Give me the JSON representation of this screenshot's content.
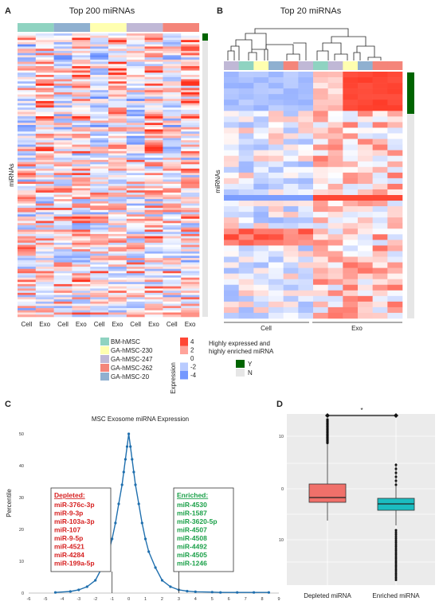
{
  "panel_a": {
    "letter": "A",
    "title": "Top 200 miRNAs",
    "ylabel": "miRNAs",
    "columns": [
      "Cell",
      "Exo",
      "Cell",
      "Exo",
      "Cell",
      "Exo",
      "Cell",
      "Exo",
      "Cell",
      "Exo"
    ],
    "group_colors": [
      "#8fd3c1",
      "#8fb0d0",
      "#ffffb0",
      "#c0b8d6",
      "#f4857a"
    ]
  },
  "panel_b": {
    "letter": "B",
    "title": "Top 20 miRNAs",
    "ylabel": "miRNAs",
    "xlabels": [
      "Cell",
      "Exo"
    ],
    "column_colors": [
      "#c0b8d6",
      "#8fd3c1",
      "#ffffb0",
      "#8fb0d0",
      "#f4857a",
      "#c0b8d6",
      "#8fd3c1",
      "#c0b8d6",
      "#ffffb0",
      "#8fb0d0",
      "#f4857a",
      "#f4857a"
    ]
  },
  "legend": {
    "groups": [
      {
        "label": "BM-hMSC",
        "color": "#8fd3c1"
      },
      {
        "label": "GA-hMSC-230",
        "color": "#ffffb0"
      },
      {
        "label": "GA-hMSC-247",
        "color": "#c0b8d6"
      },
      {
        "label": "GA-hMSC-262",
        "color": "#f4857a"
      },
      {
        "label": "GA-hMSC-20",
        "color": "#8fb0d0"
      }
    ],
    "expression_title": "Expression",
    "expression_ticks": [
      "4",
      "2",
      "0",
      "-2",
      "-4"
    ],
    "highlight_title_line1": "Highly expressed and",
    "highlight_title_line2": "highly enriched miRNA",
    "highlight_items": [
      {
        "label": "Y",
        "color": "#006400"
      },
      {
        "label": "N",
        "color": "#e6e6e6"
      }
    ]
  },
  "panel_c": {
    "letter": "C",
    "chart_data": {
      "type": "line",
      "title": "MSC Exosome miRNA Expression",
      "xlabel": "",
      "ylabel": "Percentile",
      "xlim": [
        -6,
        9
      ],
      "ylim": [
        0,
        50
      ],
      "xticks": [
        "-6",
        "-5",
        "-4",
        "-3",
        "-2",
        "-1",
        "0",
        "1",
        "2",
        "3",
        "4",
        "5",
        "6",
        "7",
        "8",
        "9"
      ],
      "yticks": [
        "0",
        "10",
        "20",
        "30",
        "40",
        "50"
      ],
      "x": [
        -4.4,
        -3.5,
        -3,
        -2.5,
        -2,
        -1.6,
        -1.2,
        -1,
        -0.8,
        -0.6,
        -0.4,
        -0.3,
        -0.2,
        -0.1,
        0,
        0.1,
        0.2,
        0.3,
        0.4,
        0.6,
        0.8,
        1,
        1.2,
        1.6,
        2,
        2.5,
        3,
        3.5,
        4,
        5,
        5.5,
        6.5,
        7.5,
        8.4
      ],
      "y": [
        0.2,
        0.5,
        1,
        2,
        4,
        8,
        13,
        17,
        22,
        28,
        34,
        38,
        42,
        46,
        50,
        46,
        42,
        38,
        34,
        28,
        22,
        17,
        13,
        8,
        4,
        2,
        1,
        0.6,
        0.4,
        0.3,
        0.2,
        0.2,
        0.2,
        0.2
      ]
    },
    "depleted": {
      "heading": "Depleted:",
      "items": [
        "miR-376c-3p",
        "miR-9-3p",
        "miR-103a-3p",
        "miR-107",
        "miR-9-5p",
        "miR-4521",
        "miR-4284",
        "miR-199a-5p"
      ]
    },
    "enriched": {
      "heading": "Enriched:",
      "items": [
        "miR-4530",
        "miR-1587",
        "miR-3620-5p",
        "miR-4507",
        "miR-4508",
        "miR-4492",
        "miR-4505",
        "miR-1246"
      ]
    },
    "colors": {
      "line": "#1f6fae",
      "depleted": "#d62020",
      "enriched": "#1aa048"
    }
  },
  "panel_d": {
    "letter": "D",
    "chart_data": {
      "type": "box",
      "categories": [
        "Depleted miRNA",
        "Enriched miRNA"
      ],
      "yticks": [
        "10",
        "0",
        "10"
      ],
      "significance": "*",
      "colors": [
        "#f0706a",
        "#1bbcc0"
      ]
    }
  }
}
